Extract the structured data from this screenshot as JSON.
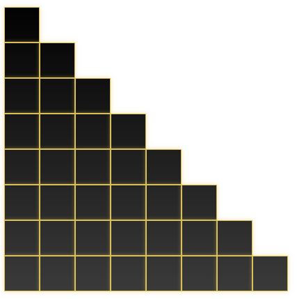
{
  "grid": {
    "rows": 8,
    "cells_per_row": [
      1,
      2,
      3,
      4,
      5,
      6,
      7,
      8
    ]
  },
  "colors": {
    "background": "#ffffff",
    "grid_line": "#d8bf5a",
    "glow": "#e6c85a",
    "cell_top": "#020202",
    "cell_bottom": "#3a3a3a"
  }
}
